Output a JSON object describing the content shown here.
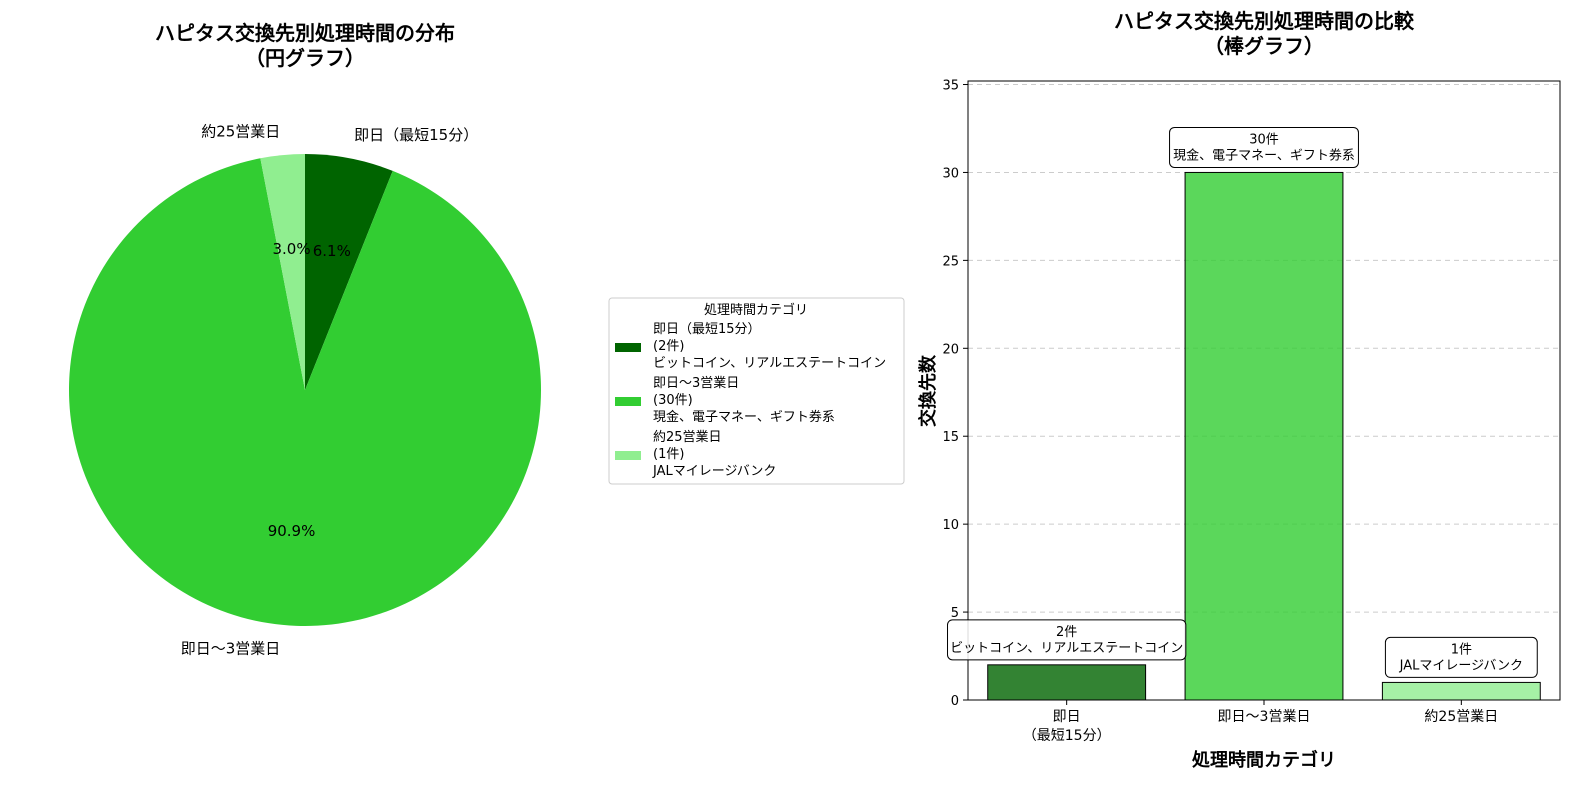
{
  "chart_data": [
    {
      "type": "pie",
      "title": "ハピタス交換先別処理時間の分布\n（円グラフ）",
      "slices": [
        {
          "label": "即日（最短15分）",
          "value": 2,
          "percent_label": "6.1%",
          "color": "#006400"
        },
        {
          "label": "即日〜3営業日",
          "value": 30,
          "percent_label": "90.9%",
          "color": "#32cd32"
        },
        {
          "label": "約25営業日",
          "value": 1,
          "percent_label": "3.0%",
          "color": "#90ee90"
        }
      ],
      "legend": {
        "title": "処理時間カテゴリ",
        "placement": "right",
        "entries": [
          {
            "lines": [
              "即日（最短15分）",
              "(2件)",
              "ビットコイン、リアルエステートコイン"
            ],
            "color": "#006400"
          },
          {
            "lines": [
              "即日〜3営業日",
              "(30件)",
              "現金、電子マネー、ギフト券系"
            ],
            "color": "#32cd32"
          },
          {
            "lines": [
              "約25営業日",
              "(1件)",
              "JALマイレージバンク"
            ],
            "color": "#90ee90"
          }
        ]
      }
    },
    {
      "type": "bar",
      "title": "ハピタス交換先別処理時間の比較\n（棒グラフ）",
      "categories": [
        "即日\n（最短15分）",
        "即日〜3営業日",
        "約25営業日"
      ],
      "values": [
        2,
        30,
        1
      ],
      "colors": [
        "#006400",
        "#32cd32",
        "#90ee90"
      ],
      "annotations": [
        "2件\nビットコイン、リアルエステートコイン",
        "30件\n現金、電子マネー、ギフト券系",
        "1件\nJALマイレージバンク"
      ],
      "xlabel": "処理時間カテゴリ",
      "ylabel": "交換先数",
      "ylim": [
        0,
        35.2
      ],
      "yticks": [
        "0",
        "5",
        "10",
        "15",
        "20",
        "25",
        "30",
        "35"
      ],
      "grid": "y-dashed"
    }
  ]
}
